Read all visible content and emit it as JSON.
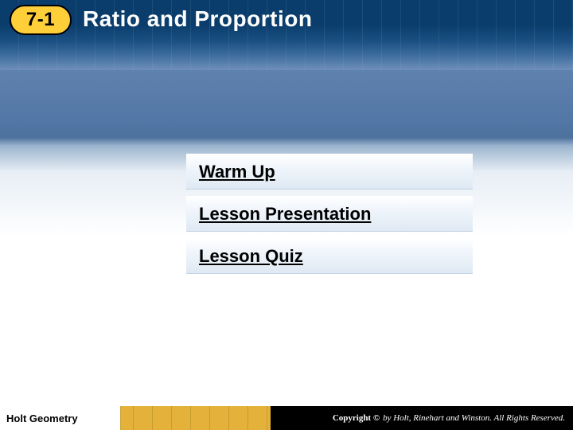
{
  "chapter_badge": "7-1",
  "title": "Ratio and Proportion",
  "links": {
    "warm_up": "Warm Up",
    "lesson_presentation": "Lesson Presentation",
    "lesson_quiz": "Lesson Quiz"
  },
  "footer": {
    "brand": "Holt Geometry",
    "copyright_prefix": "Copyright ©",
    "copyright_rest": " by Holt, Rinehart and Winston. All Rights Reserved."
  },
  "colors": {
    "badge_bg": "#ffcf3a",
    "title_band_dark": "#0a3d6b",
    "footer_gold": "#e4b23a",
    "footer_black": "#000000"
  }
}
